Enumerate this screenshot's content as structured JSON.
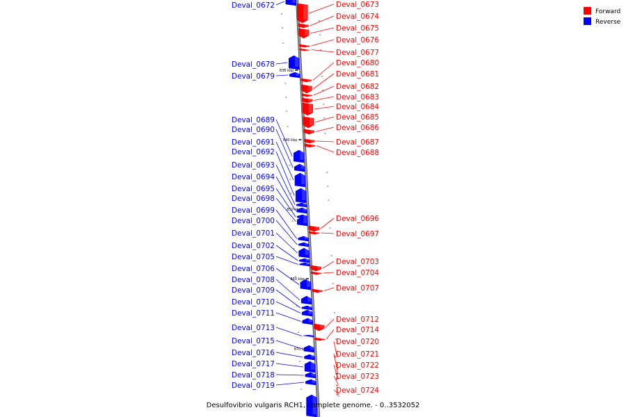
{
  "caption": "Desulfovibrio vulgaris RCH1, complete genome. - 0..3532052",
  "legend": [
    {
      "label": "Forward",
      "color": "#ff0000"
    },
    {
      "label": "Reverse",
      "color": "#0000ff"
    }
  ],
  "colors": {
    "forward": "#ff0000",
    "reverse": "#0000ff",
    "backbone": "#999999"
  },
  "scale_marks": [
    "830 kbp",
    "840 kbp",
    "850 kbp",
    "860 kbp",
    "870 kbp"
  ],
  "genes_forward": [
    "Deval_0673",
    "Deval_0674",
    "Deval_0675",
    "Deval_0676",
    "Deval_0677",
    "Deval_0680",
    "Deval_0681",
    "Deval_0682",
    "Deval_0683",
    "Deval_0684",
    "Deval_0685",
    "Deval_0686",
    "Deval_0687",
    "Deval_0688",
    "Deval_0696",
    "Deval_0697",
    "Deval_0703",
    "Deval_0704",
    "Deval_0707",
    "Deval_0712",
    "Deval_0714",
    "Deval_0720",
    "Deval_0721",
    "Deval_0722",
    "Deval_0723",
    "Deval_0724"
  ],
  "genes_reverse": [
    "Deval_0672",
    "Deval_0678",
    "Deval_0679",
    "Deval_0689",
    "Deval_0690",
    "Deval_0691",
    "Deval_0692",
    "Deval_0693",
    "Deval_0694",
    "Deval_0695",
    "Deval_0698",
    "Deval_0699",
    "Deval_0700",
    "Deval_0701",
    "Deval_0702",
    "Deval_0705",
    "Deval_0706",
    "Deval_0708",
    "Deval_0709",
    "Deval_0710",
    "Deval_0711",
    "Deval_0713",
    "Deval_0715",
    "Deval_0716",
    "Deval_0717",
    "Deval_0718",
    "Deval_0719"
  ]
}
